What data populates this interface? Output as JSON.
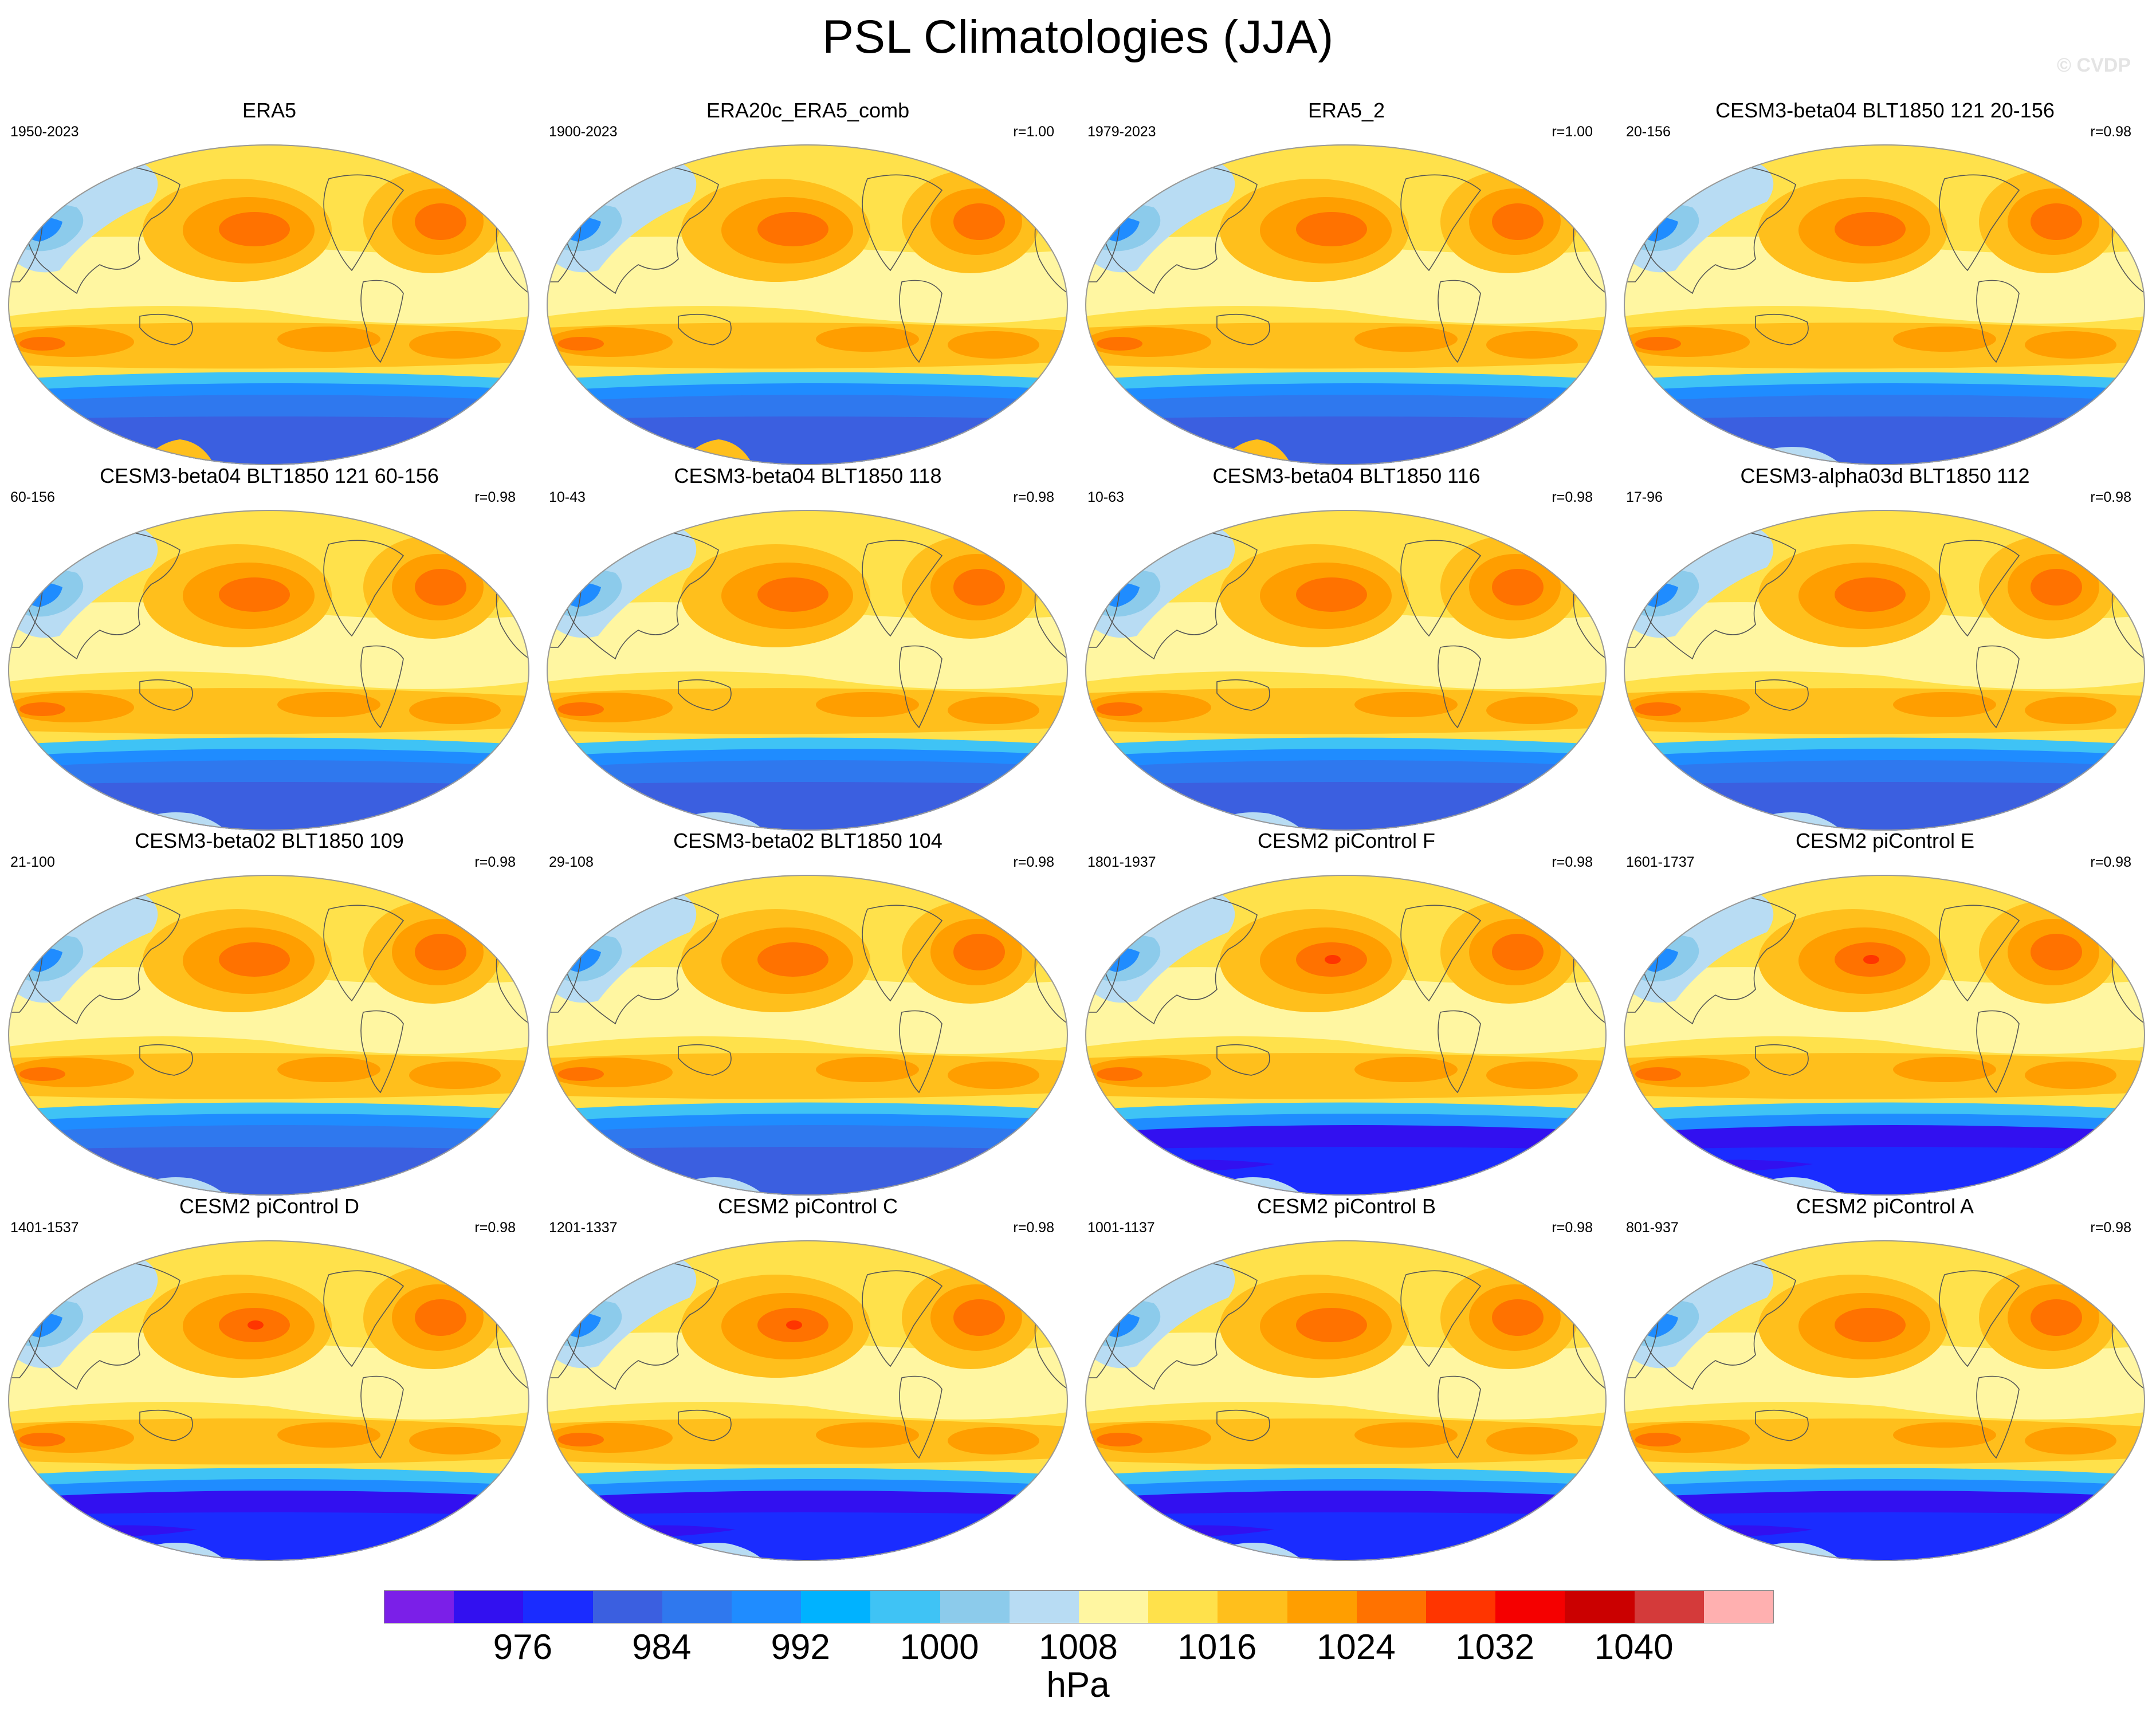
{
  "figure": {
    "title": "PSL Climatologies (JJA)",
    "copyright": "© CVDP"
  },
  "panels": [
    {
      "title": "ERA5",
      "years": "1950-2023",
      "corr": "",
      "variant": "obs",
      "high": 1,
      "south": 0
    },
    {
      "title": "ERA20c_ERA5_comb",
      "years": "1900-2023",
      "corr": "r=1.00",
      "variant": "obs",
      "high": 1,
      "south": 0
    },
    {
      "title": "ERA5_2",
      "years": "1979-2023",
      "corr": "r=1.00",
      "variant": "obs",
      "high": 1,
      "south": 0
    },
    {
      "title": "CESM3-beta04 BLT1850 121 20-156",
      "years": "20-156",
      "corr": "r=0.98",
      "variant": "cesm3",
      "high": 1,
      "south": 0
    },
    {
      "title": "CESM3-beta04 BLT1850 121 60-156",
      "years": "60-156",
      "corr": "r=0.98",
      "variant": "cesm3",
      "high": 1,
      "south": 0
    },
    {
      "title": "CESM3-beta04 BLT1850 118",
      "years": "10-43",
      "corr": "r=0.98",
      "variant": "cesm3",
      "high": 1,
      "south": 0
    },
    {
      "title": "CESM3-beta04 BLT1850 116",
      "years": "10-63",
      "corr": "r=0.98",
      "variant": "cesm3",
      "high": 1,
      "south": 0
    },
    {
      "title": "CESM3-alpha03d BLT1850 112",
      "years": "17-96",
      "corr": "r=0.98",
      "variant": "cesm3",
      "high": 1,
      "south": 0
    },
    {
      "title": "CESM3-beta02 BLT1850 109",
      "years": "21-100",
      "corr": "r=0.98",
      "variant": "cesm3",
      "high": 1,
      "south": 0
    },
    {
      "title": "CESM3-beta02 BLT1850 104",
      "years": "29-108",
      "corr": "r=0.98",
      "variant": "cesm3",
      "high": 1,
      "south": 0
    },
    {
      "title": "CESM2 piControl F",
      "years": "1801-1937",
      "corr": "r=0.98",
      "variant": "cesm2",
      "high": 2,
      "south": 1
    },
    {
      "title": "CESM2 piControl E",
      "years": "1601-1737",
      "corr": "r=0.98",
      "variant": "cesm2",
      "high": 2,
      "south": 1
    },
    {
      "title": "CESM2 piControl D",
      "years": "1401-1537",
      "corr": "r=0.98",
      "variant": "cesm2",
      "high": 2,
      "south": 1
    },
    {
      "title": "CESM2 piControl C",
      "years": "1201-1337",
      "corr": "r=0.98",
      "variant": "cesm2",
      "high": 2,
      "south": 1
    },
    {
      "title": "CESM2 piControl B",
      "years": "1001-1137",
      "corr": "r=0.98",
      "variant": "cesm2",
      "high": 1,
      "south": 1
    },
    {
      "title": "CESM2 piControl A",
      "years": "801-937",
      "corr": "r=0.98",
      "variant": "cesm2",
      "high": 1,
      "south": 1
    }
  ],
  "colorbar": {
    "colors": [
      "#7b1fe8",
      "#3210f0",
      "#1a2cff",
      "#3b5fe0",
      "#2f78ee",
      "#1f8cff",
      "#00b2ff",
      "#3fc3f5",
      "#8ccbeb",
      "#b8dcf3",
      "#fff6a1",
      "#ffe14b",
      "#ffbf1c",
      "#ff9e00",
      "#ff7200",
      "#ff3500",
      "#f50000",
      "#cb0000",
      "#d43a3a",
      "#ffb0b0"
    ],
    "tick_labels": [
      "976",
      "984",
      "992",
      "1000",
      "1008",
      "1016",
      "1024",
      "1032",
      "1040"
    ],
    "units": "hPa"
  }
}
